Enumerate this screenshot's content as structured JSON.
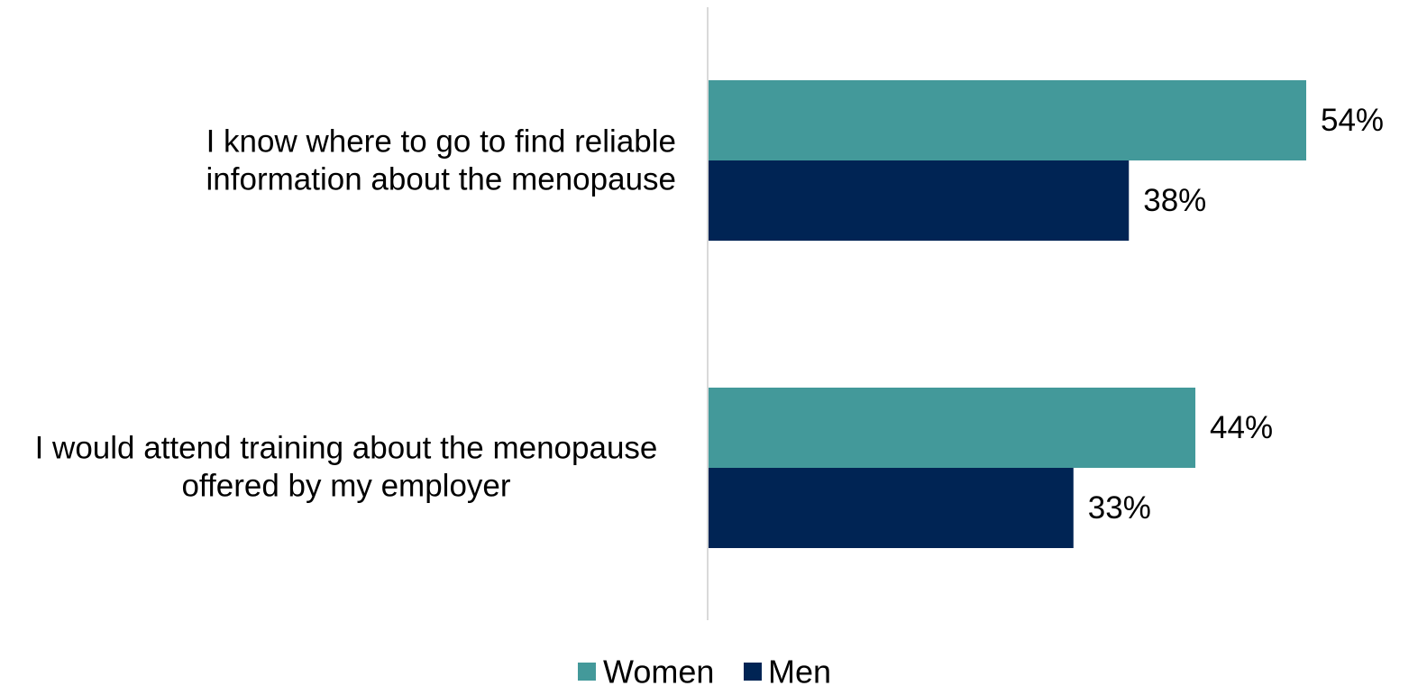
{
  "chart_data": {
    "type": "bar",
    "orientation": "horizontal",
    "categories": [
      [
        "I know where to go to find reliable",
        "information about the menopause"
      ],
      [
        "I would attend training about the menopause",
        "offered by my employer"
      ]
    ],
    "series": [
      {
        "name": "Women",
        "values": [
          54,
          44
        ],
        "labels": [
          "54%",
          "44%"
        ],
        "color": "#43999A"
      },
      {
        "name": "Men",
        "values": [
          38,
          33
        ],
        "labels": [
          "38%",
          "33%"
        ],
        "color": "#002454"
      }
    ],
    "xlim": [
      0,
      54
    ],
    "grid": false,
    "legend_position": "bottom",
    "axis_color": "#D9D9D9"
  }
}
